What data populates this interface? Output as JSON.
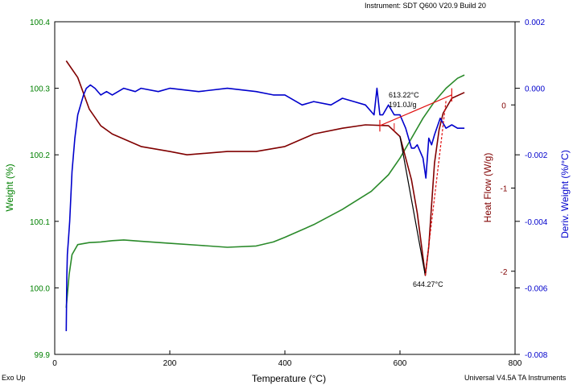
{
  "header": {
    "instrument": "Instrument: SDT Q600 V20.9 Build 20"
  },
  "footer": {
    "exo_label": "Exo Up",
    "software": "Universal V4.5A TA Instruments"
  },
  "chart_data": {
    "type": "line",
    "title": "",
    "xlabel": "Temperature (°C)",
    "xlim": [
      0,
      800
    ],
    "xticks": [
      "0",
      "200",
      "400",
      "600",
      "800"
    ],
    "axes": {
      "weight": {
        "label": "Weight (%)",
        "range": [
          99.9,
          100.4
        ],
        "ticks": [
          "99.9",
          "100.0",
          "100.1",
          "100.2",
          "100.3",
          "100.4"
        ],
        "color": "#008000"
      },
      "heatflow": {
        "label": "Heat Flow (W/g)",
        "range": [
          -3,
          1
        ],
        "ticks": [
          "0",
          "-1",
          "-2"
        ],
        "color": "#800000"
      },
      "deriv": {
        "label": "Deriv. Weight (%/°C)",
        "range": [
          -0.008,
          0.002
        ],
        "ticks": [
          "0.002",
          "0.000",
          "-0.002",
          "-0.004",
          "-0.006",
          "-0.008"
        ],
        "color": "#0000cc"
      }
    },
    "series": [
      {
        "axis": "weight",
        "color": "#2a8a2a",
        "points": [
          [
            20,
            99.97
          ],
          [
            25,
            100.02
          ],
          [
            30,
            100.05
          ],
          [
            40,
            100.065
          ],
          [
            60,
            100.068
          ],
          [
            80,
            100.069
          ],
          [
            100,
            100.071
          ],
          [
            120,
            100.072
          ],
          [
            150,
            100.07
          ],
          [
            200,
            100.067
          ],
          [
            250,
            100.064
          ],
          [
            300,
            100.061
          ],
          [
            350,
            100.063
          ],
          [
            380,
            100.069
          ],
          [
            400,
            100.076
          ],
          [
            450,
            100.095
          ],
          [
            500,
            100.118
          ],
          [
            550,
            100.145
          ],
          [
            580,
            100.17
          ],
          [
            600,
            100.195
          ],
          [
            620,
            100.225
          ],
          [
            640,
            100.255
          ],
          [
            660,
            100.28
          ],
          [
            680,
            100.3
          ],
          [
            700,
            100.315
          ],
          [
            712,
            100.32
          ]
        ]
      },
      {
        "axis": "heatflow",
        "color": "#800000",
        "points": [
          [
            20,
            0.53
          ],
          [
            40,
            0.33
          ],
          [
            60,
            -0.05
          ],
          [
            80,
            -0.25
          ],
          [
            100,
            -0.35
          ],
          [
            150,
            -0.5
          ],
          [
            200,
            -0.56
          ],
          [
            230,
            -0.6
          ],
          [
            300,
            -0.56
          ],
          [
            350,
            -0.56
          ],
          [
            400,
            -0.5
          ],
          [
            450,
            -0.35
          ],
          [
            500,
            -0.28
          ],
          [
            540,
            -0.24
          ],
          [
            580,
            -0.25
          ],
          [
            600,
            -0.38
          ],
          [
            620,
            -0.9
          ],
          [
            630,
            -1.3
          ],
          [
            644,
            -2.05
          ],
          [
            650,
            -1.7
          ],
          [
            655,
            -1.2
          ],
          [
            660,
            -0.7
          ],
          [
            668,
            -0.3
          ],
          [
            675,
            -0.1
          ],
          [
            690,
            0.08
          ],
          [
            712,
            0.15
          ]
        ]
      },
      {
        "axis": "deriv",
        "color": "#0000cc",
        "points": [
          [
            20,
            -0.0073
          ],
          [
            21,
            -0.0057
          ],
          [
            22,
            -0.005
          ],
          [
            24,
            -0.0045
          ],
          [
            26,
            -0.004
          ],
          [
            30,
            -0.0025
          ],
          [
            35,
            -0.0015
          ],
          [
            40,
            -0.0008
          ],
          [
            50,
            -0.0002
          ],
          [
            55,
            0.0
          ],
          [
            62,
            0.0001
          ],
          [
            70,
            0.0
          ],
          [
            80,
            -0.0002
          ],
          [
            90,
            -0.0001
          ],
          [
            100,
            -0.0002
          ],
          [
            120,
            0.0
          ],
          [
            140,
            -0.0001
          ],
          [
            150,
            0.0
          ],
          [
            180,
            -0.0001
          ],
          [
            200,
            0.0
          ],
          [
            250,
            -0.0001
          ],
          [
            300,
            0.0
          ],
          [
            350,
            -0.0001
          ],
          [
            380,
            -0.0002
          ],
          [
            400,
            -0.0002
          ],
          [
            430,
            -0.0005
          ],
          [
            450,
            -0.0004
          ],
          [
            480,
            -0.0005
          ],
          [
            500,
            -0.0003
          ],
          [
            520,
            -0.0004
          ],
          [
            540,
            -0.0005
          ],
          [
            555,
            -0.0008
          ],
          [
            560,
            0.0
          ],
          [
            565,
            -0.0008
          ],
          [
            570,
            -0.0008
          ],
          [
            580,
            -0.0005
          ],
          [
            590,
            -0.0008
          ],
          [
            600,
            -0.0008
          ],
          [
            610,
            -0.0012
          ],
          [
            615,
            -0.0015
          ],
          [
            620,
            -0.0018
          ],
          [
            625,
            -0.0018
          ],
          [
            630,
            -0.0017
          ],
          [
            640,
            -0.0021
          ],
          [
            645,
            -0.0027
          ],
          [
            650,
            -0.0015
          ],
          [
            655,
            -0.0017
          ],
          [
            660,
            -0.0014
          ],
          [
            670,
            -0.0009
          ],
          [
            680,
            -0.0012
          ],
          [
            690,
            -0.0011
          ],
          [
            700,
            -0.0012
          ],
          [
            712,
            -0.0012
          ]
        ]
      }
    ],
    "annotations": [
      {
        "text": "613.22°C",
        "x": 613,
        "y": -0.07,
        "axis": "heatflow"
      },
      {
        "text": "191.0J/g",
        "x": 613,
        "y": -0.15,
        "axis": "heatflow"
      },
      {
        "text": "644.27°C",
        "x": 644,
        "y": -2.15,
        "axis": "heatflow"
      }
    ]
  }
}
